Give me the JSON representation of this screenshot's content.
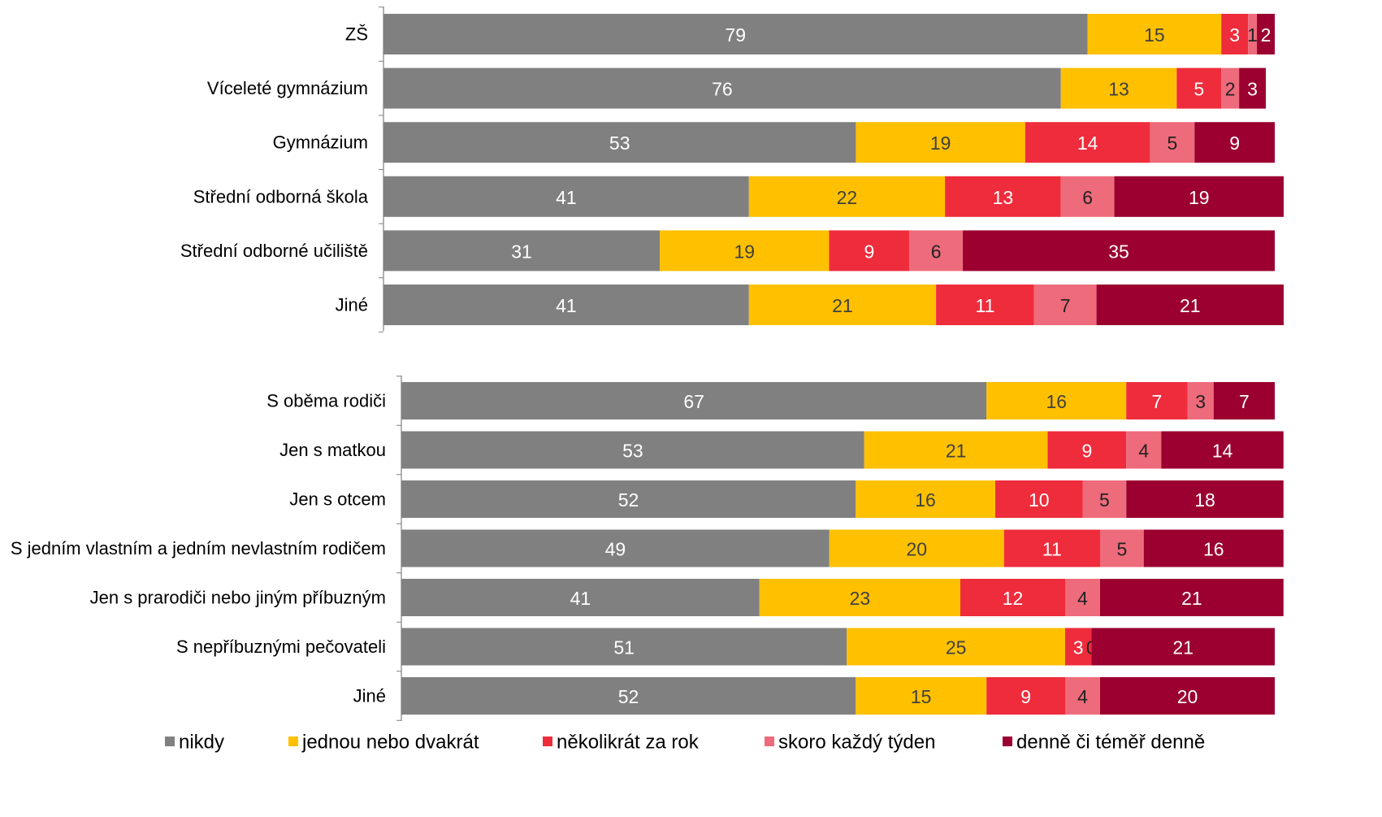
{
  "chart_data": [
    {
      "type": "bar",
      "orientation": "horizontal",
      "stacked": true,
      "categories": [
        "ZŠ",
        "Víceleté gymnázium",
        "Gymnázium",
        "Střední odborná škola",
        "Střední odborné učiliště",
        "Jiné"
      ],
      "series": [
        {
          "name": "nikdy",
          "values": [
            79,
            76,
            53,
            41,
            31,
            41
          ]
        },
        {
          "name": "jednou nebo dvakrát",
          "values": [
            15,
            13,
            19,
            22,
            19,
            21
          ]
        },
        {
          "name": "několikrát za rok",
          "values": [
            3,
            5,
            14,
            13,
            9,
            11
          ]
        },
        {
          "name": "skoro každý týden",
          "values": [
            1,
            2,
            5,
            6,
            6,
            7
          ]
        },
        {
          "name": "denně či téměř denně",
          "values": [
            2,
            3,
            9,
            19,
            35,
            21
          ]
        }
      ],
      "xlim": [
        0,
        100
      ]
    },
    {
      "type": "bar",
      "orientation": "horizontal",
      "stacked": true,
      "categories": [
        "S oběma rodiči",
        "Jen s matkou",
        "Jen s otcem",
        "S jedním vlastním a jedním nevlastním rodičem",
        "Jen s prarodiči nebo jiným příbuzným",
        "S nepříbuznými pečovateli",
        "Jiné"
      ],
      "series": [
        {
          "name": "nikdy",
          "values": [
            67,
            53,
            52,
            49,
            41,
            51,
            52
          ]
        },
        {
          "name": "jednou nebo dvakrát",
          "values": [
            16,
            21,
            16,
            20,
            23,
            25,
            15
          ]
        },
        {
          "name": "několikrát za rok",
          "values": [
            7,
            9,
            10,
            11,
            12,
            3,
            9
          ]
        },
        {
          "name": "skoro každý týden",
          "values": [
            3,
            4,
            5,
            5,
            4,
            0,
            4
          ]
        },
        {
          "name": "denně či téměř denně",
          "values": [
            7,
            14,
            18,
            16,
            21,
            21,
            20
          ]
        }
      ],
      "xlim": [
        0,
        100
      ]
    }
  ],
  "legend": {
    "position": "bottom",
    "items": [
      {
        "label": "nikdy",
        "color": "#808080"
      },
      {
        "label": "jednou nebo dvakrát",
        "color": "#FFC000"
      },
      {
        "label": "několikrát za rok",
        "color": "#EE2C3C"
      },
      {
        "label": "skoro každý týden",
        "color": "#EE6B7B"
      },
      {
        "label": "denně či téměř denně",
        "color": "#9B0030"
      }
    ]
  },
  "series_colors": [
    "#808080",
    "#FFC000",
    "#EE2C3C",
    "#EE6B7B",
    "#9B0030"
  ],
  "label_colors": [
    "#FFFFFF",
    "#404040",
    "#FFFFFF",
    "#222222",
    "#FFFFFF"
  ]
}
